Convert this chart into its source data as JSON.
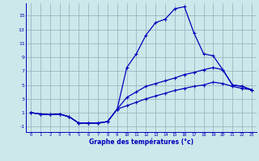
{
  "xlabel": "Graphe des températures (°c)",
  "background_color": "#cce8ea",
  "grid_color": "#99aabb",
  "line_color": "#0000bb",
  "x_ticks": [
    0,
    1,
    2,
    3,
    4,
    5,
    6,
    7,
    8,
    9,
    10,
    11,
    12,
    13,
    14,
    15,
    16,
    17,
    18,
    19,
    20,
    21,
    22,
    23
  ],
  "y_ticks": [
    -1,
    1,
    3,
    5,
    7,
    9,
    11,
    13,
    15
  ],
  "ylim": [
    -1.8,
    16.8
  ],
  "xlim": [
    -0.5,
    23.5
  ],
  "curve1_x": [
    0,
    1,
    2,
    3,
    4,
    5,
    6,
    7,
    8,
    9,
    10,
    11,
    12,
    13,
    14,
    15,
    16,
    17,
    18,
    19,
    20,
    21,
    22,
    23
  ],
  "curve1_y": [
    1.0,
    0.8,
    0.7,
    0.8,
    0.4,
    -0.5,
    -0.5,
    -0.5,
    -0.3,
    1.5,
    7.5,
    9.5,
    12.2,
    14.0,
    14.5,
    16.0,
    16.3,
    12.5,
    9.5,
    9.2,
    7.2,
    5.0,
    4.8,
    4.3
  ],
  "curve2_x": [
    0,
    1,
    2,
    3,
    4,
    5,
    6,
    7,
    8,
    9,
    10,
    11,
    12,
    13,
    14,
    15,
    16,
    17,
    18,
    19,
    20,
    21,
    22,
    23
  ],
  "curve2_y": [
    1.0,
    0.8,
    0.7,
    0.8,
    0.4,
    -0.5,
    -0.5,
    -0.5,
    -0.3,
    1.5,
    3.2,
    4.0,
    4.8,
    5.2,
    5.6,
    6.0,
    6.5,
    6.8,
    7.2,
    7.5,
    7.2,
    5.0,
    4.8,
    4.3
  ],
  "curve3_x": [
    0,
    1,
    2,
    3,
    4,
    5,
    6,
    7,
    8,
    9,
    10,
    11,
    12,
    13,
    14,
    15,
    16,
    17,
    18,
    19,
    20,
    21,
    22,
    23
  ],
  "curve3_y": [
    1.0,
    0.8,
    0.7,
    0.8,
    0.4,
    -0.5,
    -0.5,
    -0.5,
    -0.3,
    1.5,
    2.0,
    2.5,
    3.0,
    3.4,
    3.8,
    4.2,
    4.5,
    4.8,
    5.0,
    5.4,
    5.2,
    4.8,
    4.5,
    4.3
  ]
}
